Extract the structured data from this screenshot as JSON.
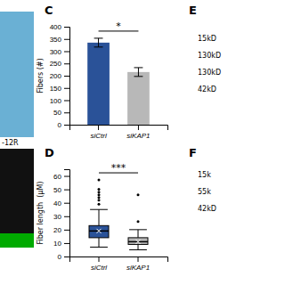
{
  "chart_data": [
    {
      "type": "bar",
      "title": "C",
      "ylabel": "Fibers (#)",
      "categories": [
        "siCtrl",
        "siKAP1"
      ],
      "values": [
        335,
        215
      ],
      "errors": [
        18,
        18
      ],
      "colors": [
        "#2a5298",
        "#b8b8b8"
      ],
      "ylim": [
        0,
        400
      ],
      "yticks": [
        0,
        50,
        100,
        150,
        200,
        250,
        300,
        350,
        400
      ],
      "annotations": [
        "*",
        "-12R",
        "E",
        "15kD",
        "130kD",
        "130kD",
        "42kD"
      ]
    },
    {
      "type": "box",
      "title": "D",
      "ylabel": "Fiber length  (µM)",
      "categories": [
        "siCtrl",
        "siKAP1"
      ],
      "colors": [
        "#2a5298",
        "#b8b8b8"
      ],
      "boxes": [
        {
          "median": 19,
          "q1": 14,
          "q3": 23,
          "whisker_low": 7,
          "whisker_high": 35,
          "outliers": [
            39,
            42,
            44,
            46,
            48,
            50,
            57
          ]
        },
        {
          "median": 11,
          "q1": 9,
          "q3": 14,
          "whisker_low": 5,
          "whisker_high": 20,
          "outliers": [
            26,
            46
          ]
        }
      ],
      "ylim": [
        0,
        65
      ],
      "yticks": [
        0,
        10,
        20,
        30,
        40,
        50,
        60
      ],
      "annotations": [
        "***",
        "F",
        "15k",
        "55k",
        "42kD"
      ]
    }
  ]
}
